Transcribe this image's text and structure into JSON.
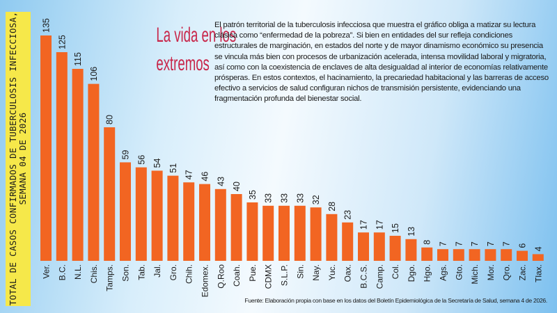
{
  "header": {
    "title_line1": "La vida en los",
    "title_line2": "extremos",
    "body": "El patrón territorial de la tuberculosis infecciosa que muestra el gráfico obliga a matizar su lectura clásica como “enfermedad de la pobreza”. Si bien en entidades del sur refleja condiciones estructurales de marginación, en estados del norte y de mayor dinamismo económico su presencia se vincula más bien con procesos de urbanización acelerada, intensa movilidad laboral y migratoria, así como con la coexistencia de enclaves de alta desigualdad al interior de economías relativamente prósperas. En estos contextos, el hacinamiento, la precariedad habitacional y las barreras de acceso efectivo a servicios de salud configuran nichos de transmisión persistente, evidenciando una fragmentación profunda del bienestar social."
  },
  "source": "Fuente: Elaboración propia con base en los datos del Boletín Epidemiológica de la Secretaría de Salud, semana 4 de 2026.",
  "chart_data": {
    "type": "bar",
    "title": "",
    "ylabel": "TOTAL DE CASOS CONFIRMADOS DE TUBERCULOSIS INFECCIOSA, SEMANA 04 DE 2026",
    "xlabel": "",
    "categories": [
      "Ver.",
      "B.C.",
      "N.L.",
      "Chis.",
      "Tamps.",
      "Son.",
      "Tab.",
      "Jal.",
      "Gro.",
      "Chih.",
      "Edomex.",
      "Q.Roo",
      "Coah.",
      "Pue.",
      "CDMX",
      "S.L.P.",
      "Sin.",
      "Nay.",
      "Yuc.",
      "Oax.",
      "B.C.S.",
      "Camp.",
      "Col.",
      "Dgo.",
      "Hgo.",
      "Ags.",
      "Gto.",
      "Mich.",
      "Mor.",
      "Qro.",
      "Zac.",
      "Tlax."
    ],
    "values": [
      135,
      125,
      115,
      106,
      80,
      59,
      56,
      54,
      51,
      47,
      46,
      43,
      40,
      35,
      33,
      33,
      33,
      32,
      28,
      23,
      17,
      17,
      15,
      13,
      8,
      7,
      7,
      7,
      7,
      7,
      6,
      4
    ],
    "ylim": [
      0,
      135
    ],
    "grid": false,
    "bar_color": "#f26522",
    "data_labels": true
  }
}
